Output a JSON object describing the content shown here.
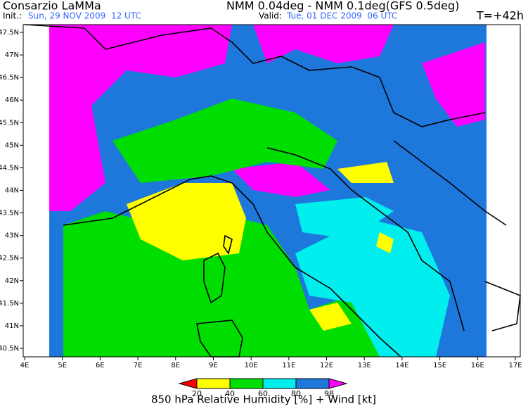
{
  "header": {
    "title": "Consarzio LaMMa",
    "model": "NMM 0.04deg - NMM 0.1deg(GFS 0.5deg)",
    "init_label": "Init.:",
    "init_time": "Sun, 29 NOV 2009  12 UTC",
    "valid_label": "Valid:",
    "valid_time": "Tue, 01 DEC 2009  06 UTC",
    "lead_time": "T=+42h"
  },
  "map": {
    "lon_ticks": [
      {
        "value": 4,
        "label": "4E"
      },
      {
        "value": 5,
        "label": "5E"
      },
      {
        "value": 6,
        "label": "6E"
      },
      {
        "value": 7,
        "label": "7E"
      },
      {
        "value": 8,
        "label": "8E"
      },
      {
        "value": 9,
        "label": "9E"
      },
      {
        "value": 10,
        "label": "10E"
      },
      {
        "value": 11,
        "label": "11E"
      },
      {
        "value": 12,
        "label": "12E"
      },
      {
        "value": 13,
        "label": "13E"
      },
      {
        "value": 14,
        "label": "14E"
      },
      {
        "value": 15,
        "label": "15E"
      },
      {
        "value": 16,
        "label": "16E"
      },
      {
        "value": 17,
        "label": "17E"
      }
    ],
    "lat_ticks": [
      {
        "value": 47.5,
        "label": "47.5N"
      },
      {
        "value": 47,
        "label": "47N"
      },
      {
        "value": 46.5,
        "label": "46.5N"
      },
      {
        "value": 46,
        "label": "46N"
      },
      {
        "value": 45.5,
        "label": "45.5N"
      },
      {
        "value": 45,
        "label": "45N"
      },
      {
        "value": 44.5,
        "label": "44.5N"
      },
      {
        "value": 44,
        "label": "44N"
      },
      {
        "value": 43.5,
        "label": "43.5N"
      },
      {
        "value": 43,
        "label": "43N"
      },
      {
        "value": 42.5,
        "label": "42.5N"
      },
      {
        "value": 42,
        "label": "42N"
      },
      {
        "value": 41.5,
        "label": "41.5N"
      },
      {
        "value": 41,
        "label": "41N"
      },
      {
        "value": 40.5,
        "label": "40.5N"
      }
    ]
  },
  "colorbar": {
    "levels": [
      20,
      40,
      60,
      80,
      98
    ],
    "colors": [
      "#ff0000",
      "#ffff00",
      "#00dd00",
      "#00eeee",
      "#1e78dc",
      "#ff00ff"
    ],
    "caption": "850 hPa Relative Humidity [%] + Wind [kt]"
  }
}
